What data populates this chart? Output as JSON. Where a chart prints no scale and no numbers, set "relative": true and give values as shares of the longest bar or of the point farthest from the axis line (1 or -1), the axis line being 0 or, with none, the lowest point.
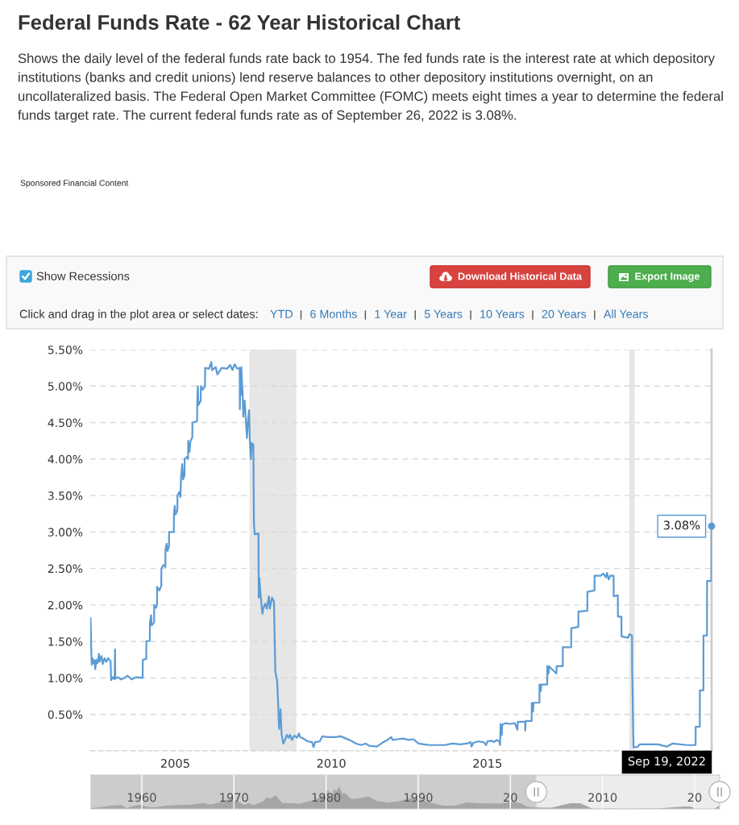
{
  "chart_data": [
    {
      "type": "line",
      "title": "Federal Funds Rate - 62 Year Historical Chart",
      "subtitle": "Shows the daily level of the federal funds rate back to 1954. The fed funds rate is the interest rate at which depository institutions (banks and credit unions) lend reserve balances to other depository institutions overnight, on an uncollateralized basis. The Federal Open Market Committee (FOMC) meets eight times a year to determine the federal funds target rate. The current federal funds rate as of September 26, 2022 is 3.08%.",
      "x": [
        "2002-10-25",
        "2002-10-28",
        "2002-10-31",
        "2002-11-07",
        "2002-11-12",
        "2002-11-20",
        "2002-12-02",
        "2002-12-12",
        "2002-12-23",
        "2003-01-02",
        "2003-01-16",
        "2003-02-04",
        "2003-02-12",
        "2003-03-05",
        "2003-03-20",
        "2003-04-10",
        "2003-05-01",
        "2003-05-22",
        "2003-06-20",
        "2003-06-26",
        "2003-07-15",
        "2003-08-06",
        "2003-08-11",
        "2003-08-14",
        "2003-09-15",
        "2003-10-20",
        "2003-12-01",
        "2004-01-05",
        "2004-02-20",
        "2004-04-15",
        "2004-06-29",
        "2004-07-01",
        "2004-08-10",
        "2004-08-11",
        "2004-09-21",
        "2004-09-22",
        "2004-10-06",
        "2004-10-12",
        "2004-11-10",
        "2004-11-11",
        "2004-12-01",
        "2004-12-14",
        "2004-12-15",
        "2005-01-10",
        "2005-02-02",
        "2005-02-03",
        "2005-03-01",
        "2005-03-22",
        "2005-03-23",
        "2005-04-05",
        "2005-04-15",
        "2005-05-03",
        "2005-05-04",
        "2005-06-29",
        "2005-06-30",
        "2005-07-10",
        "2005-07-20",
        "2005-08-09",
        "2005-08-10",
        "2005-09-01",
        "2005-09-14",
        "2005-09-21",
        "2005-10-05",
        "2005-10-15",
        "2005-11-01",
        "2005-11-02",
        "2005-12-01",
        "2005-12-13",
        "2005-12-14",
        "2005-12-28",
        "2006-01-10",
        "2006-01-31",
        "2006-02-01",
        "2006-03-28",
        "2006-03-29",
        "2006-04-05",
        "2006-04-12",
        "2006-05-09",
        "2006-05-11",
        "2006-06-01",
        "2006-06-28",
        "2006-06-30",
        "2006-08-15",
        "2006-09-10",
        "2006-09-20",
        "2006-11-01",
        "2006-11-20",
        "2007-01-10",
        "2007-03-15",
        "2007-04-20",
        "2007-05-15",
        "2007-06-10",
        "2007-07-10",
        "2007-08-08",
        "2007-08-10",
        "2007-08-16",
        "2007-08-22",
        "2007-08-28",
        "2007-09-05",
        "2007-09-12",
        "2007-09-19",
        "2007-09-26",
        "2007-10-05",
        "2007-10-17",
        "2007-11-01",
        "2007-11-15",
        "2007-11-26",
        "2007-12-05",
        "2007-12-17",
        "2007-12-27",
        "2008-01-15",
        "2008-01-22",
        "2008-01-30",
        "2008-03-15",
        "2008-03-18",
        "2008-03-25",
        "2008-04-08",
        "2008-04-30",
        "2008-05-10",
        "2008-06-01",
        "2008-06-20",
        "2008-07-15",
        "2008-07-25",
        "2008-08-20",
        "2008-09-12",
        "2008-09-28",
        "2008-10-20",
        "2008-11-01",
        "2008-11-10",
        "2008-11-28",
        "2008-12-10",
        "2008-12-31",
        "2009-01-20",
        "2009-02-10",
        "2009-03-01",
        "2009-03-20",
        "2009-04-10",
        "2009-05-10",
        "2009-06-10",
        "2009-07-01",
        "2009-07-15",
        "2009-09-01",
        "2009-10-15",
        "2009-12-01",
        "2009-12-20",
        "2010-01-05",
        "2010-03-01",
        "2010-04-01",
        "2010-06-01",
        "2010-09-01",
        "2010-11-01",
        "2011-01-01",
        "2011-03-01",
        "2011-05-01",
        "2011-07-01",
        "2011-08-20",
        "2011-10-01",
        "2012-01-01",
        "2012-03-01",
        "2012-05-01",
        "2012-06-15",
        "2012-07-01",
        "2012-09-01",
        "2012-11-01",
        "2013-01-01",
        "2013-03-01",
        "2013-05-01",
        "2013-07-01",
        "2013-09-01",
        "2013-12-01",
        "2014-03-01",
        "2014-06-01",
        "2014-09-01",
        "2014-11-15",
        "2015-01-01",
        "2015-01-10",
        "2015-02-01",
        "2015-04-01",
        "2015-06-01",
        "2015-06-30",
        "2015-07-15",
        "2015-09-01",
        "2015-10-01",
        "2015-11-01",
        "2015-12-01",
        "2015-12-10",
        "2015-12-17",
        "2015-12-31",
        "2016-01-05",
        "2016-02-15",
        "2016-04-01",
        "2016-06-01",
        "2016-06-30",
        "2016-07-05",
        "2016-09-29",
        "2016-09-30",
        "2016-10-05",
        "2016-12-14",
        "2016-12-15",
        "2016-12-30",
        "2017-01-05",
        "2017-03-15",
        "2017-03-16",
        "2017-03-31",
        "2017-04-05",
        "2017-06-14",
        "2017-06-15",
        "2017-06-30",
        "2017-07-05",
        "2017-09-29",
        "2017-10-02",
        "2017-12-13",
        "2017-12-14",
        "2018-03-21",
        "2018-03-22",
        "2018-06-13",
        "2018-06-14",
        "2018-09-26",
        "2018-09-27",
        "2018-12-19",
        "2018-12-20",
        "2019-03-01",
        "2019-04-01",
        "2019-05-01",
        "2019-05-15",
        "2019-06-01",
        "2019-06-20",
        "2019-07-31",
        "2019-08-01",
        "2019-09-18",
        "2019-09-19",
        "2019-10-30",
        "2019-10-31",
        "2020-01-15",
        "2020-02-01",
        "2020-03-02",
        "2020-03-04",
        "2020-03-16",
        "2020-03-20",
        "2020-05-01",
        "2020-06-01",
        "2020-09-01",
        "2021-01-01",
        "2021-03-01",
        "2021-04-15",
        "2021-05-01",
        "2021-06-17",
        "2021-12-01",
        "2022-03-16",
        "2022-03-17",
        "2022-05-04",
        "2022-05-05",
        "2022-06-15",
        "2022-06-16",
        "2022-07-27",
        "2022-07-28",
        "2022-09-16",
        "2022-09-19"
      ],
      "series": [
        {
          "color": "#5b9bd5",
          "values": [
            1.75,
            1.82,
            1.72,
            1.3,
            1.18,
            1.27,
            1.2,
            1.24,
            1.12,
            1.25,
            1.2,
            1.33,
            1.22,
            1.3,
            1.19,
            1.27,
            1.22,
            1.27,
            1.23,
            0.97,
            1.01,
            0.98,
            1.39,
            0.99,
            1.01,
            0.98,
            1.0,
            1.03,
            0.98,
            1.01,
            1.0,
            1.25,
            1.26,
            1.5,
            1.51,
            1.76,
            1.86,
            1.72,
            1.76,
            2.0,
            1.96,
            2.0,
            2.25,
            2.2,
            2.26,
            2.5,
            2.55,
            2.52,
            2.75,
            2.84,
            2.74,
            2.8,
            3.0,
            3.0,
            3.25,
            3.36,
            3.24,
            3.3,
            3.5,
            3.55,
            3.48,
            3.75,
            3.93,
            3.72,
            3.78,
            4.0,
            4.03,
            4.0,
            4.25,
            4.1,
            4.25,
            4.3,
            4.5,
            4.52,
            4.75,
            5.0,
            4.74,
            4.8,
            5.0,
            4.95,
            5.0,
            5.25,
            5.24,
            5.33,
            5.22,
            5.26,
            5.16,
            5.25,
            5.24,
            5.29,
            5.22,
            5.3,
            5.24,
            5.25,
            4.68,
            5.05,
            4.88,
            5.26,
            5.02,
            4.9,
            4.58,
            4.72,
            4.8,
            4.58,
            4.29,
            4.55,
            4.67,
            4.25,
            4.0,
            4.22,
            4.2,
            3.12,
            2.97,
            2.98,
            2.1,
            2.37,
            2.15,
            1.88,
            1.95,
            2.02,
            1.95,
            2.12,
            1.95,
            2.1,
            2.05,
            1.09,
            0.95,
            0.62,
            0.3,
            0.57,
            0.23,
            0.1,
            0.15,
            0.22,
            0.18,
            0.22,
            0.15,
            0.21,
            0.18,
            0.24,
            0.19,
            0.16,
            0.13,
            0.12,
            0.05,
            0.12,
            0.13,
            0.2,
            0.19,
            0.19,
            0.2,
            0.17,
            0.14,
            0.1,
            0.08,
            0.1,
            0.07,
            0.06,
            0.11,
            0.15,
            0.19,
            0.15,
            0.16,
            0.17,
            0.15,
            0.16,
            0.1,
            0.09,
            0.08,
            0.08,
            0.08,
            0.1,
            0.09,
            0.1,
            0.12,
            0.06,
            0.11,
            0.13,
            0.12,
            0.08,
            0.13,
            0.14,
            0.12,
            0.15,
            0.13,
            0.08,
            0.37,
            0.22,
            0.36,
            0.38,
            0.37,
            0.38,
            0.29,
            0.4,
            0.4,
            0.28,
            0.41,
            0.41,
            0.66,
            0.54,
            0.66,
            0.66,
            0.91,
            0.82,
            0.91,
            0.91,
            1.16,
            1.06,
            1.16,
            1.06,
            1.16,
            1.16,
            1.42,
            1.42,
            1.68,
            1.7,
            1.91,
            1.92,
            2.18,
            2.2,
            2.4,
            2.4,
            2.43,
            2.38,
            2.44,
            2.35,
            2.4,
            2.4,
            2.12,
            2.13,
            1.84,
            1.84,
            1.57,
            1.55,
            1.6,
            1.58,
            1.1,
            0.25,
            0.05,
            0.05,
            0.09,
            0.09,
            0.09,
            0.07,
            0.06,
            0.07,
            0.1,
            0.08,
            0.08,
            0.33,
            0.33,
            0.83,
            0.83,
            1.58,
            1.58,
            2.33,
            2.33,
            3.08
          ]
        }
      ],
      "xlim": [
        "2002-10-25",
        "2022-09-19"
      ],
      "xticks": [
        {
          "value": "2005-07-15",
          "label": "2005"
        },
        {
          "value": "2010-07-15",
          "label": "2010"
        },
        {
          "value": "2015-07-15",
          "label": "2015"
        }
      ],
      "ylim": [
        0,
        5.5
      ],
      "yticks": [
        {
          "value": 0,
          "label": null
        },
        {
          "value": 0.5,
          "label": "0.50%"
        },
        {
          "value": 1.0,
          "label": "1.00%"
        },
        {
          "value": 1.5,
          "label": "1.50%"
        },
        {
          "value": 2.0,
          "label": "2.00%"
        },
        {
          "value": 2.5,
          "label": "2.50%"
        },
        {
          "value": 3.0,
          "label": "3.00%"
        },
        {
          "value": 3.5,
          "label": "3.50%"
        },
        {
          "value": 4.0,
          "label": "4.00%"
        },
        {
          "value": 4.5,
          "label": "4.50%"
        },
        {
          "value": 5.0,
          "label": "5.00%"
        },
        {
          "value": 5.5,
          "label": "5.50%"
        }
      ],
      "grid": "y",
      "bands": [
        {
          "axis": "x",
          "from": "2007-12-01",
          "to": "2009-06-01",
          "color": "#e6e6e6"
        },
        {
          "axis": "x",
          "from": "2020-02-01",
          "to": "2020-04-01",
          "color": "#e6e6e6"
        }
      ],
      "ref_lines": [
        {
          "axis": "x",
          "value": "2022-09-19",
          "label": "Sep 19, 2022",
          "color": "#cccccc"
        }
      ],
      "annotations": [
        "Sponsored Financial Content",
        "Show Recessions",
        "Download Historical Data",
        "Export Image",
        "Click and drag in the plot area or select dates:",
        "YTD",
        "6 Months",
        "1 Year",
        "5 Years",
        "10 Years",
        "20 Years",
        "All Years",
        {
          "text": "3.08%",
          "x": "2022-09-19",
          "y": 3.08
        }
      ]
    },
    {
      "type": "area",
      "relative": true,
      "x": [
        "1954-07",
        "1955-06",
        "1956-10",
        "1957-10",
        "1958-05",
        "1959-01",
        "1959-11",
        "1960-07",
        "1961-06",
        "1962-06",
        "1963-09",
        "1965-06",
        "1966-09",
        "1967-06",
        "1968-06",
        "1969-08",
        "1970-06",
        "1971-02",
        "1971-08",
        "1972-02",
        "1973-03",
        "1973-08",
        "1974-01",
        "1974-07",
        "1975-04",
        "1976-06",
        "1977-01",
        "1977-12",
        "1978-09",
        "1979-04",
        "1979-10",
        "1980-04",
        "1980-07",
        "1980-12",
        "1981-02",
        "1981-06",
        "1981-10",
        "1982-02",
        "1982-10",
        "1983-08",
        "1984-08",
        "1985-06",
        "1986-10",
        "1987-10",
        "1989-03",
        "1990-06",
        "1991-06",
        "1992-10",
        "1994-01",
        "1995-04",
        "1996-06",
        "1998-10",
        "2000-06",
        "2001-03",
        "2001-12",
        "2003-07",
        "2004-06",
        "2006-07",
        "2007-08",
        "2008-12",
        "2015-12",
        "2018-12",
        "2019-07",
        "2020-04",
        "2022-03",
        "2022-09"
      ],
      "series": [
        {
          "color": "#a6a6a6",
          "values": [
            0.04,
            0.07,
            0.14,
            0.17,
            0.04,
            0.12,
            0.19,
            0.1,
            0.06,
            0.13,
            0.17,
            0.19,
            0.27,
            0.19,
            0.29,
            0.44,
            0.34,
            0.18,
            0.26,
            0.16,
            0.34,
            0.51,
            0.46,
            0.61,
            0.26,
            0.25,
            0.22,
            0.31,
            0.39,
            0.49,
            0.66,
            0.84,
            0.43,
            0.91,
            0.76,
            1.0,
            0.7,
            0.7,
            0.44,
            0.46,
            0.55,
            0.37,
            0.28,
            0.33,
            0.47,
            0.39,
            0.27,
            0.14,
            0.14,
            0.29,
            0.25,
            0.23,
            0.31,
            0.24,
            0.09,
            0.05,
            0.05,
            0.25,
            0.25,
            0.01,
            0.02,
            0.11,
            0.11,
            0.0,
            0.0,
            0.15
          ]
        }
      ],
      "xlim": [
        "1954-07-01",
        "2022-09-19"
      ],
      "xticks": [
        {
          "value": "1960-01-01",
          "label": "1960"
        },
        {
          "value": "1970-01-01",
          "label": "1970"
        },
        {
          "value": "1980-01-01",
          "label": "1980"
        },
        {
          "value": "1990-01-01",
          "label": "1990"
        },
        {
          "value": "2000-01-01",
          "label": "20"
        },
        {
          "value": "2010-01-01",
          "label": "2010"
        },
        {
          "value": "2020-01-01",
          "label": "20"
        }
      ],
      "tick_labels": "x",
      "grid": "x",
      "bands": [
        {
          "axis": "x",
          "from": "2002-10-25",
          "to": "2022-09-19",
          "color": "#ececec"
        }
      ]
    }
  ]
}
